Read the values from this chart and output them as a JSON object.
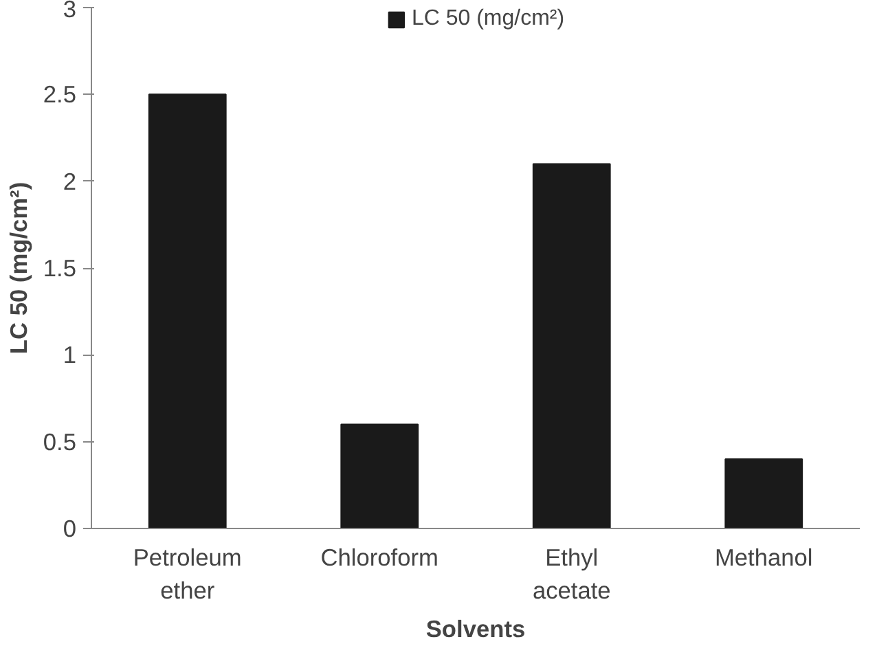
{
  "chart_data": {
    "type": "bar",
    "xlabel": "Solvents",
    "ylabel": "LC 50 (mg/cm²)",
    "categories": [
      "Petroleum ether",
      "Chloroform",
      "Ethyl acetate",
      "Methanol"
    ],
    "series": [
      {
        "name": "LC 50 (mg/cm²)",
        "color": "#1a1a1a",
        "values": [
          2.5,
          0.6,
          2.1,
          0.4
        ]
      }
    ],
    "ylim": [
      0,
      3
    ],
    "yticks": [
      0,
      0.5,
      1,
      1.5,
      2,
      2.5,
      3
    ],
    "grid": false,
    "legend": "top"
  }
}
